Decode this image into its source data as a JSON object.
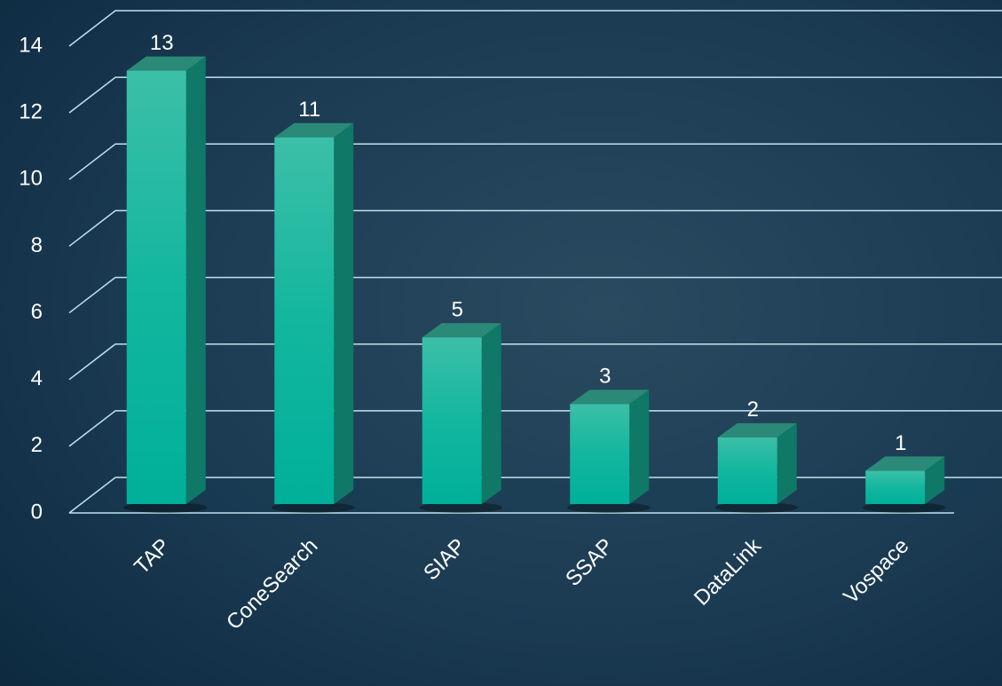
{
  "chart_data": {
    "type": "bar3d",
    "categories": [
      "TAP",
      "ConeSearch",
      "SIAP",
      "SSAP",
      "DataLink",
      "Vospace"
    ],
    "values": [
      13,
      11,
      5,
      3,
      2,
      1
    ],
    "color": "#14b8a0",
    "ylim": [
      0,
      14
    ],
    "yticks": [
      0,
      2,
      4,
      6,
      8,
      10,
      12,
      14
    ],
    "grid": true
  }
}
